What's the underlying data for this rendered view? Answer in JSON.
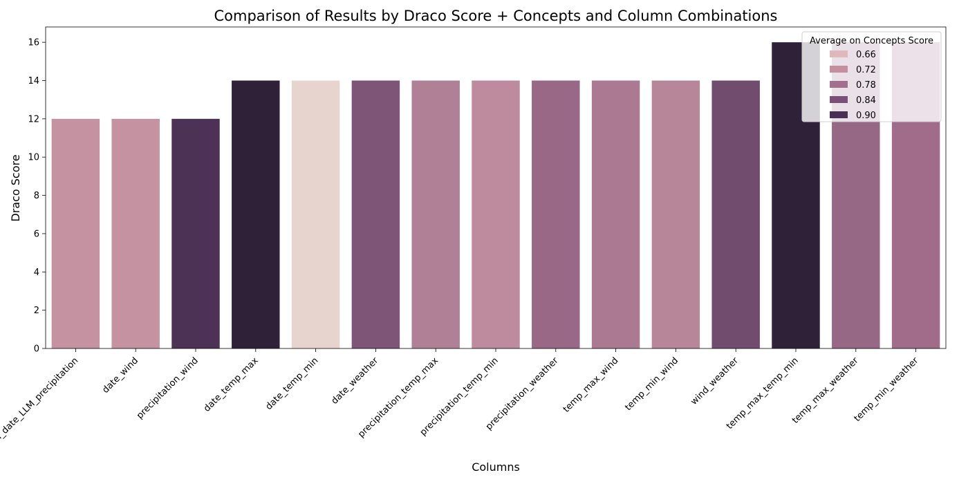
{
  "chart_data": {
    "type": "bar",
    "title": "Comparison of Results by Draco Score + Concepts and Column Combinations",
    "xlabel": "Columns",
    "ylabel": "Draco Score",
    "ylim": [
      0,
      16.8
    ],
    "yticks": [
      0,
      2,
      4,
      6,
      8,
      10,
      12,
      14,
      16
    ],
    "categories": [
      "LLM_date_LLM_precipitation",
      "date_wind",
      "precipitation_wind",
      "date_temp_max",
      "date_temp_min",
      "date_weather",
      "precipitation_temp_max",
      "precipitation_temp_min",
      "precipitation_weather",
      "temp_max_wind",
      "temp_min_wind",
      "wind_weather",
      "temp_max_temp_min",
      "temp_max_weather",
      "temp_min_weather"
    ],
    "values": [
      12,
      12,
      12,
      14,
      14,
      14,
      14,
      14,
      14,
      14,
      14,
      14,
      16,
      16,
      16
    ],
    "bar_colors": [
      "#c492a0",
      "#c492a0",
      "#4c3356",
      "#2e2138",
      "#e8d4ce",
      "#7e5577",
      "#b08196",
      "#be8a9d",
      "#986886",
      "#ab7a92",
      "#b78799",
      "#724c6f",
      "#2e2138",
      "#976786",
      "#a06c8a"
    ],
    "legend": {
      "title": "Average on Concepts Score",
      "position": "top-right",
      "entries": [
        {
          "label": "0.66",
          "color": "#e0b8bb"
        },
        {
          "label": "0.72",
          "color": "#c490a0"
        },
        {
          "label": "0.78",
          "color": "#a36f8e"
        },
        {
          "label": "0.84",
          "color": "#7a4f78"
        },
        {
          "label": "0.90",
          "color": "#4a2f55"
        }
      ]
    },
    "grid": false
  }
}
